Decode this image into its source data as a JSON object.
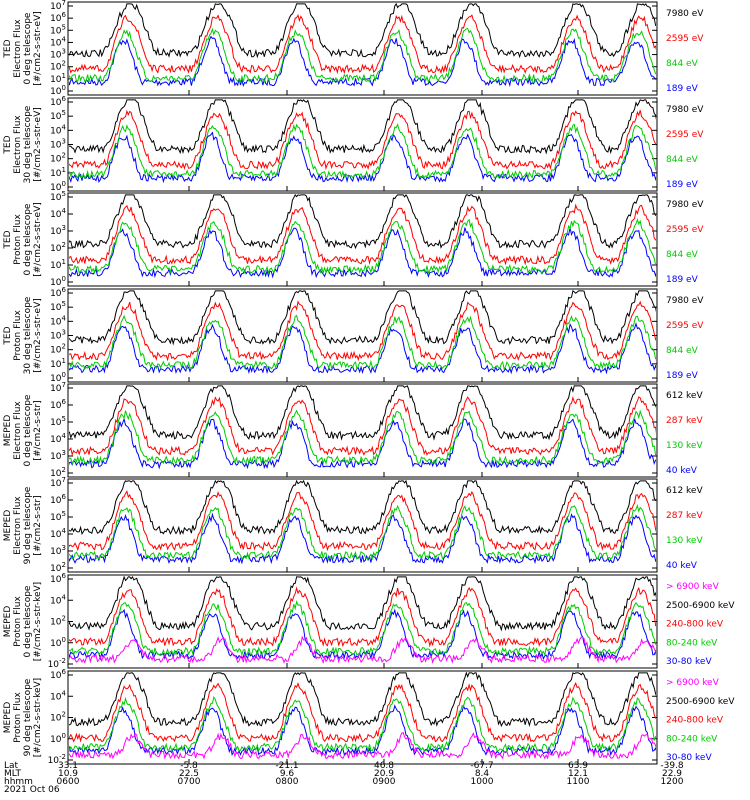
{
  "panels": [
    {
      "ylabel": [
        "TED",
        "Electron Flux",
        "0 deg telescope",
        "[#/cm2-s-str-eV]"
      ],
      "yticks": [
        "10^7",
        "10^6",
        "10^5",
        "10^4",
        "10^3",
        "10^2",
        "10^1",
        "10^0"
      ],
      "legend": [
        {
          "label": "7980 eV",
          "color": "#000000"
        },
        {
          "label": "2595 eV",
          "color": "#ff0000"
        },
        {
          "label": "844 eV",
          "color": "#00cc00"
        },
        {
          "label": "189 eV",
          "color": "#0000ff"
        }
      ]
    },
    {
      "ylabel": [
        "TED",
        "Electron Flux",
        "30 deg telescope",
        "[#/cm2-s-str-eV]"
      ],
      "yticks": [
        "10^6",
        "10^5",
        "10^4",
        "10^3",
        "10^2",
        "10^1",
        "10^0"
      ],
      "legend": [
        {
          "label": "7980 eV",
          "color": "#000000"
        },
        {
          "label": "2595 eV",
          "color": "#ff0000"
        },
        {
          "label": "844 eV",
          "color": "#00cc00"
        },
        {
          "label": "189 eV",
          "color": "#0000ff"
        }
      ]
    },
    {
      "ylabel": [
        "TED",
        "Proton Flux",
        "0 deg telescope",
        "[#/cm2-s-str-eV]"
      ],
      "yticks": [
        "10^5",
        "10^4",
        "10^3",
        "10^2",
        "10^1",
        "10^0"
      ],
      "legend": [
        {
          "label": "7980 eV",
          "color": "#000000"
        },
        {
          "label": "2595 eV",
          "color": "#ff0000"
        },
        {
          "label": "844 eV",
          "color": "#00cc00"
        },
        {
          "label": "189 eV",
          "color": "#0000ff"
        }
      ]
    },
    {
      "ylabel": [
        "TED",
        "Proton Flux",
        "30 deg telescope",
        "[#/cm2-s-str-eV]"
      ],
      "yticks": [
        "10^6",
        "10^5",
        "10^4",
        "10^3",
        "10^2",
        "10^1",
        "10^0"
      ],
      "legend": [
        {
          "label": "7980 eV",
          "color": "#000000"
        },
        {
          "label": "2595 eV",
          "color": "#ff0000"
        },
        {
          "label": "844 eV",
          "color": "#00cc00"
        },
        {
          "label": "189 eV",
          "color": "#0000ff"
        }
      ]
    },
    {
      "ylabel": [
        "MEPED",
        "Electron Flux",
        "0 deg telescope",
        "[#/cm2-s-str]"
      ],
      "yticks": [
        "10^7",
        "10^6",
        "10^5",
        "10^4",
        "10^3",
        "10^2"
      ],
      "legend": [
        {
          "label": "612 keV",
          "color": "#000000"
        },
        {
          "label": "287 keV",
          "color": "#ff0000"
        },
        {
          "label": "130 keV",
          "color": "#00cc00"
        },
        {
          "label": "40 keV",
          "color": "#0000ff"
        }
      ]
    },
    {
      "ylabel": [
        "MEPED",
        "Electron Flux",
        "90 deg telescope",
        "[#/cm2-s-str]"
      ],
      "yticks": [
        "10^7",
        "10^6",
        "10^5",
        "10^4",
        "10^3",
        "10^2"
      ],
      "legend": [
        {
          "label": "612 keV",
          "color": "#000000"
        },
        {
          "label": "287 keV",
          "color": "#ff0000"
        },
        {
          "label": "130 keV",
          "color": "#00cc00"
        },
        {
          "label": "40 keV",
          "color": "#0000ff"
        }
      ]
    },
    {
      "ylabel": [
        "MEPED",
        "Proton Flux",
        "0 deg telescope",
        "[#/cm2-s-str-keV]"
      ],
      "yticks": [
        "10^6",
        "10^4",
        "10^2",
        "10^0",
        "10^-2"
      ],
      "legend": [
        {
          "label": "> 6900 keV",
          "color": "#ff00ff"
        },
        {
          "label": "2500-6900 keV",
          "color": "#000000"
        },
        {
          "label": "240-800 keV",
          "color": "#ff0000"
        },
        {
          "label": "80-240 keV",
          "color": "#00cc00"
        },
        {
          "label": "30-80 keV",
          "color": "#0000ff"
        }
      ]
    },
    {
      "ylabel": [
        "MEPED",
        "Proton Flux",
        "90 deg telescope",
        "[#/cm2-s-str-keV]"
      ],
      "yticks": [
        "10^6",
        "10^4",
        "10^2",
        "10^0",
        "10^-2"
      ],
      "legend": [
        {
          "label": "> 6900 keV",
          "color": "#ff00ff"
        },
        {
          "label": "2500-6900 keV",
          "color": "#000000"
        },
        {
          "label": "240-800 keV",
          "color": "#ff0000"
        },
        {
          "label": "80-240 keV",
          "color": "#00cc00"
        },
        {
          "label": "30-80 keV",
          "color": "#0000ff"
        }
      ]
    }
  ],
  "xaxis": {
    "row_labels": [
      "Lat",
      "MLT",
      "hhmm",
      "2021 Oct 06"
    ],
    "ticks": [
      {
        "lat": "33.1",
        "mlt": "10.9",
        "time": "0600"
      },
      {
        "lat": "-5.8",
        "mlt": "22.5",
        "time": "0700"
      },
      {
        "lat": "-21.1",
        "mlt": "9.6",
        "time": "0800"
      },
      {
        "lat": "46.8",
        "mlt": "20.9",
        "time": "0900"
      },
      {
        "lat": "-67.7",
        "mlt": "8.4",
        "time": "1000"
      },
      {
        "lat": "63.9",
        "mlt": "12.1",
        "time": "1100"
      },
      {
        "lat": "-39.8",
        "mlt": "22.9",
        "time": "1200"
      }
    ]
  },
  "chart_data": {
    "type": "line",
    "x": [
      "0600",
      "0700",
      "0800",
      "0900",
      "1000",
      "1100",
      "1200"
    ],
    "xlim": [
      "0600",
      "1200"
    ],
    "log_y": true,
    "panels": [
      {
        "series_names": [
          "7980 eV",
          "2595 eV",
          "844 eV",
          "189 eV"
        ],
        "ylim": [
          1,
          10000000
        ]
      },
      {
        "series_names": [
          "7980 eV",
          "2595 eV",
          "844 eV",
          "189 eV"
        ],
        "ylim": [
          1,
          1000000
        ]
      },
      {
        "series_names": [
          "7980 eV",
          "2595 eV",
          "844 eV",
          "189 eV"
        ],
        "ylim": [
          1,
          100000
        ]
      },
      {
        "series_names": [
          "7980 eV",
          "2595 eV",
          "844 eV",
          "189 eV"
        ],
        "ylim": [
          1,
          1000000
        ]
      },
      {
        "series_names": [
          "612 keV",
          "287 keV",
          "130 keV",
          "40 keV"
        ],
        "ylim": [
          100,
          10000000
        ]
      },
      {
        "series_names": [
          "612 keV",
          "287 keV",
          "130 keV",
          "40 keV"
        ],
        "ylim": [
          100,
          10000000
        ]
      },
      {
        "series_names": [
          "> 6900 keV",
          "2500-6900 keV",
          "240-800 keV",
          "80-240 keV",
          "30-80 keV"
        ],
        "ylim": [
          0.01,
          1000000
        ]
      },
      {
        "series_names": [
          "> 6900 keV",
          "2500-6900 keV",
          "240-800 keV",
          "80-240 keV",
          "30-80 keV"
        ],
        "ylim": [
          0.01,
          1000000
        ]
      }
    ]
  }
}
